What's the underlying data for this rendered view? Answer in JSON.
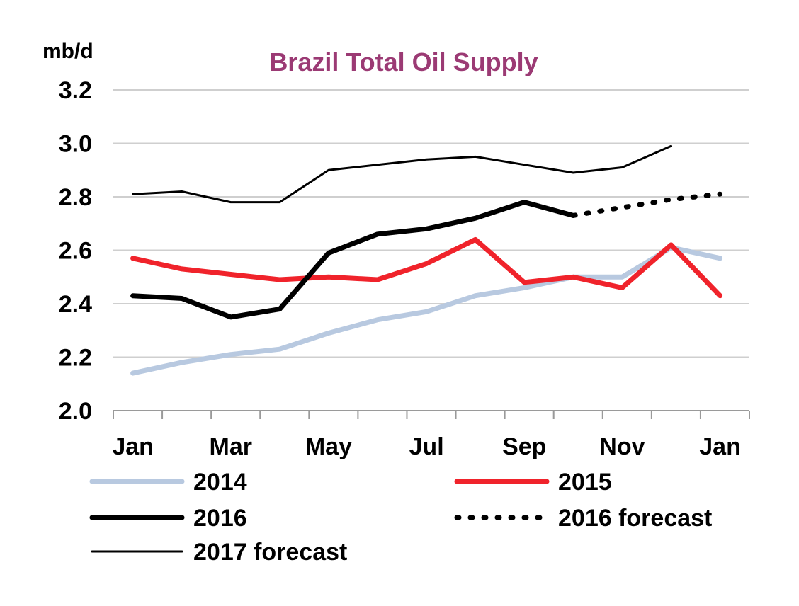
{
  "chart_data": {
    "type": "line",
    "title": "Brazil Total Oil Supply",
    "ylabel": "mb/d",
    "xlabel": "",
    "ylim": [
      2.0,
      3.2
    ],
    "y_ticks": [
      "2.0",
      "2.2",
      "2.4",
      "2.6",
      "2.8",
      "3.0",
      "3.2"
    ],
    "y_tick_values": [
      2.0,
      2.2,
      2.4,
      2.6,
      2.8,
      3.0,
      3.2
    ],
    "x_tick_labels": [
      "Jan",
      "Mar",
      "May",
      "Jul",
      "Sep",
      "Nov",
      "Jan"
    ],
    "x_tick_positions": [
      1,
      3,
      5,
      7,
      9,
      11,
      13
    ],
    "x_range": [
      0.6,
      13.6
    ],
    "grid": "horizontal",
    "legend_position": "bottom",
    "title_color": "#9b3a74",
    "series": [
      {
        "name": "2014",
        "color": "#b8c9e0",
        "style": "thick",
        "x": [
          1,
          2,
          3,
          4,
          5,
          6,
          7,
          8,
          9,
          10,
          11,
          12,
          13
        ],
        "values": [
          2.14,
          2.18,
          2.21,
          2.23,
          2.29,
          2.34,
          2.37,
          2.43,
          2.46,
          2.5,
          2.5,
          2.61,
          2.57
        ]
      },
      {
        "name": "2015",
        "color": "#f0232b",
        "style": "thick",
        "x": [
          1,
          2,
          3,
          4,
          5,
          6,
          7,
          8,
          9,
          10,
          11,
          12,
          13
        ],
        "values": [
          2.57,
          2.53,
          2.51,
          2.49,
          2.5,
          2.49,
          2.55,
          2.64,
          2.48,
          2.5,
          2.46,
          2.62,
          2.43
        ]
      },
      {
        "name": "2016",
        "color": "#000000",
        "style": "thick",
        "x": [
          1,
          2,
          3,
          4,
          5,
          6,
          7,
          8,
          9,
          10
        ],
        "values": [
          2.43,
          2.42,
          2.35,
          2.38,
          2.59,
          2.66,
          2.68,
          2.72,
          2.78,
          2.73
        ]
      },
      {
        "name": "2016 forecast",
        "color": "#000000",
        "style": "dotted",
        "x": [
          10,
          11,
          12,
          13
        ],
        "values": [
          2.73,
          2.76,
          2.79,
          2.81
        ]
      },
      {
        "name": "2017 forecast",
        "color": "#000000",
        "style": "thin",
        "x": [
          1,
          2,
          3,
          4,
          5,
          6,
          7,
          8,
          9,
          10,
          11,
          12
        ],
        "values": [
          2.81,
          2.82,
          2.78,
          2.78,
          2.9,
          2.92,
          2.94,
          2.95,
          2.92,
          2.89,
          2.91,
          2.99
        ]
      }
    ]
  }
}
